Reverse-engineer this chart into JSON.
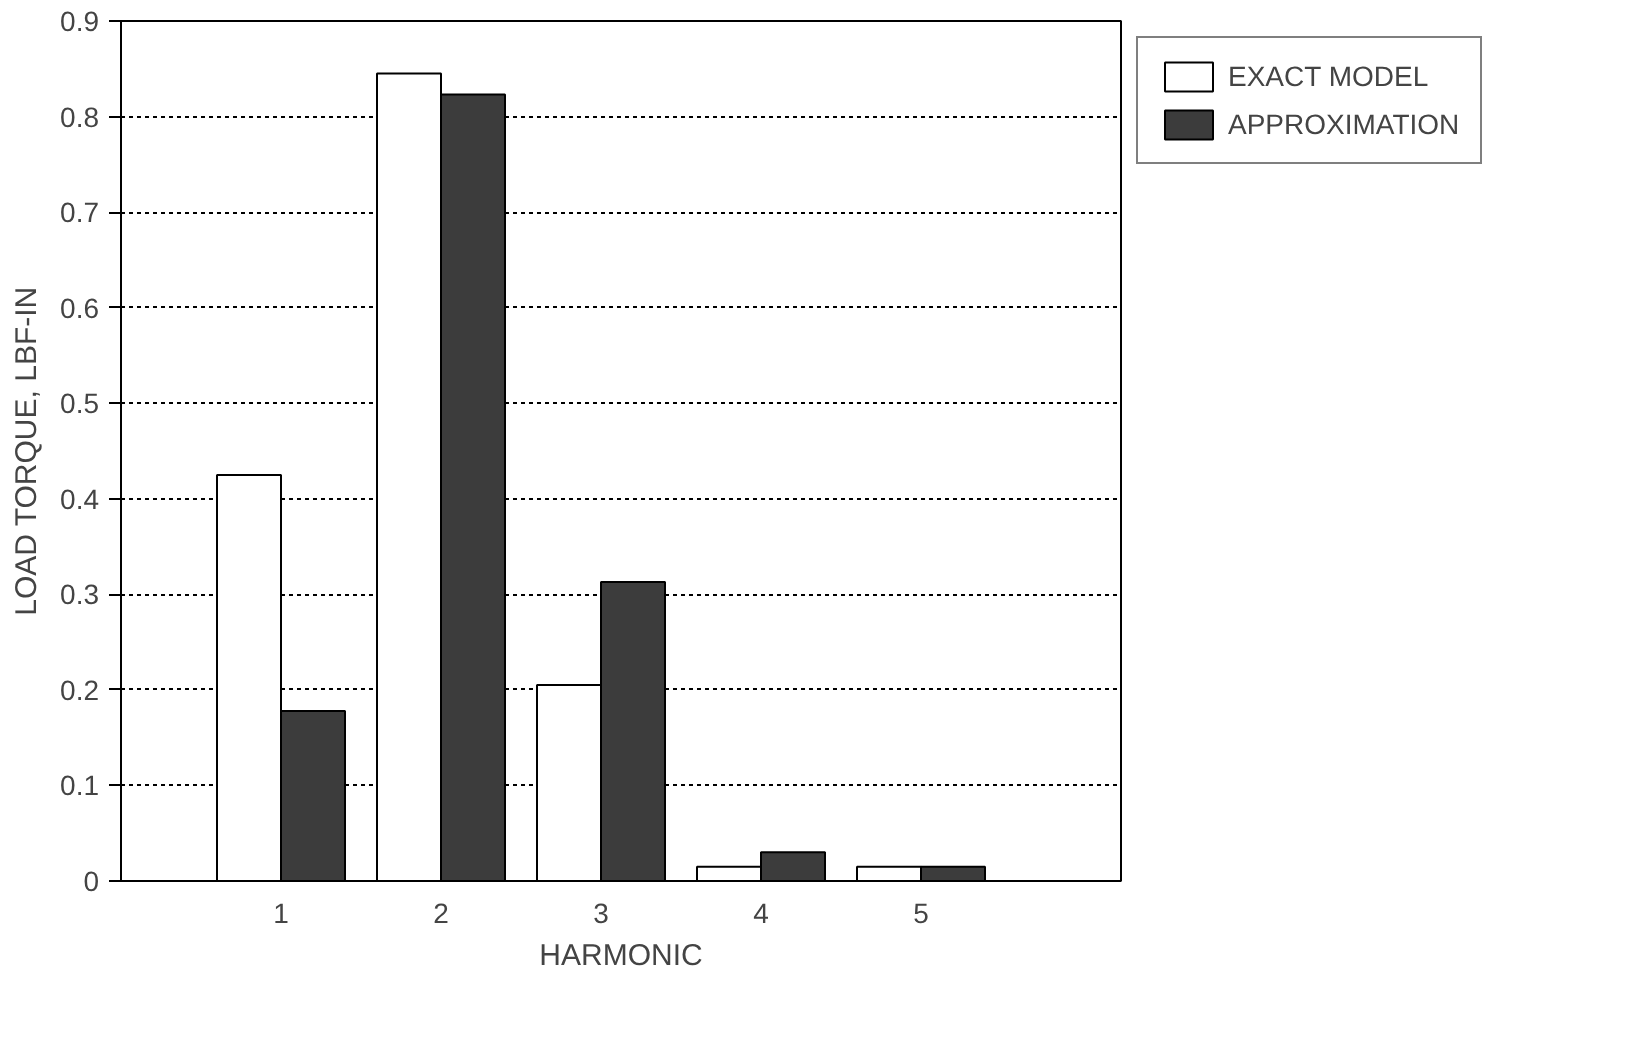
{
  "chart_data": {
    "type": "bar",
    "xlabel": "HARMONIC",
    "ylabel": "LOAD TORQUE, LBF-IN",
    "categories": [
      "1",
      "2",
      "3",
      "4",
      "5"
    ],
    "series": [
      {
        "name": "EXACT MODEL",
        "color": "#ffffff",
        "values": [
          0.425,
          0.845,
          0.205,
          0.015,
          0.015
        ]
      },
      {
        "name": "APPROXIMATION",
        "color": "#3c3c3c",
        "values": [
          0.178,
          0.823,
          0.313,
          0.03,
          0.015
        ]
      }
    ],
    "ylim": [
      0,
      0.9
    ],
    "yticks": [
      0,
      0.1,
      0.2,
      0.3,
      0.4,
      0.5,
      0.6,
      0.7,
      0.8,
      0.9
    ],
    "grid": "y",
    "legend": "top right"
  }
}
